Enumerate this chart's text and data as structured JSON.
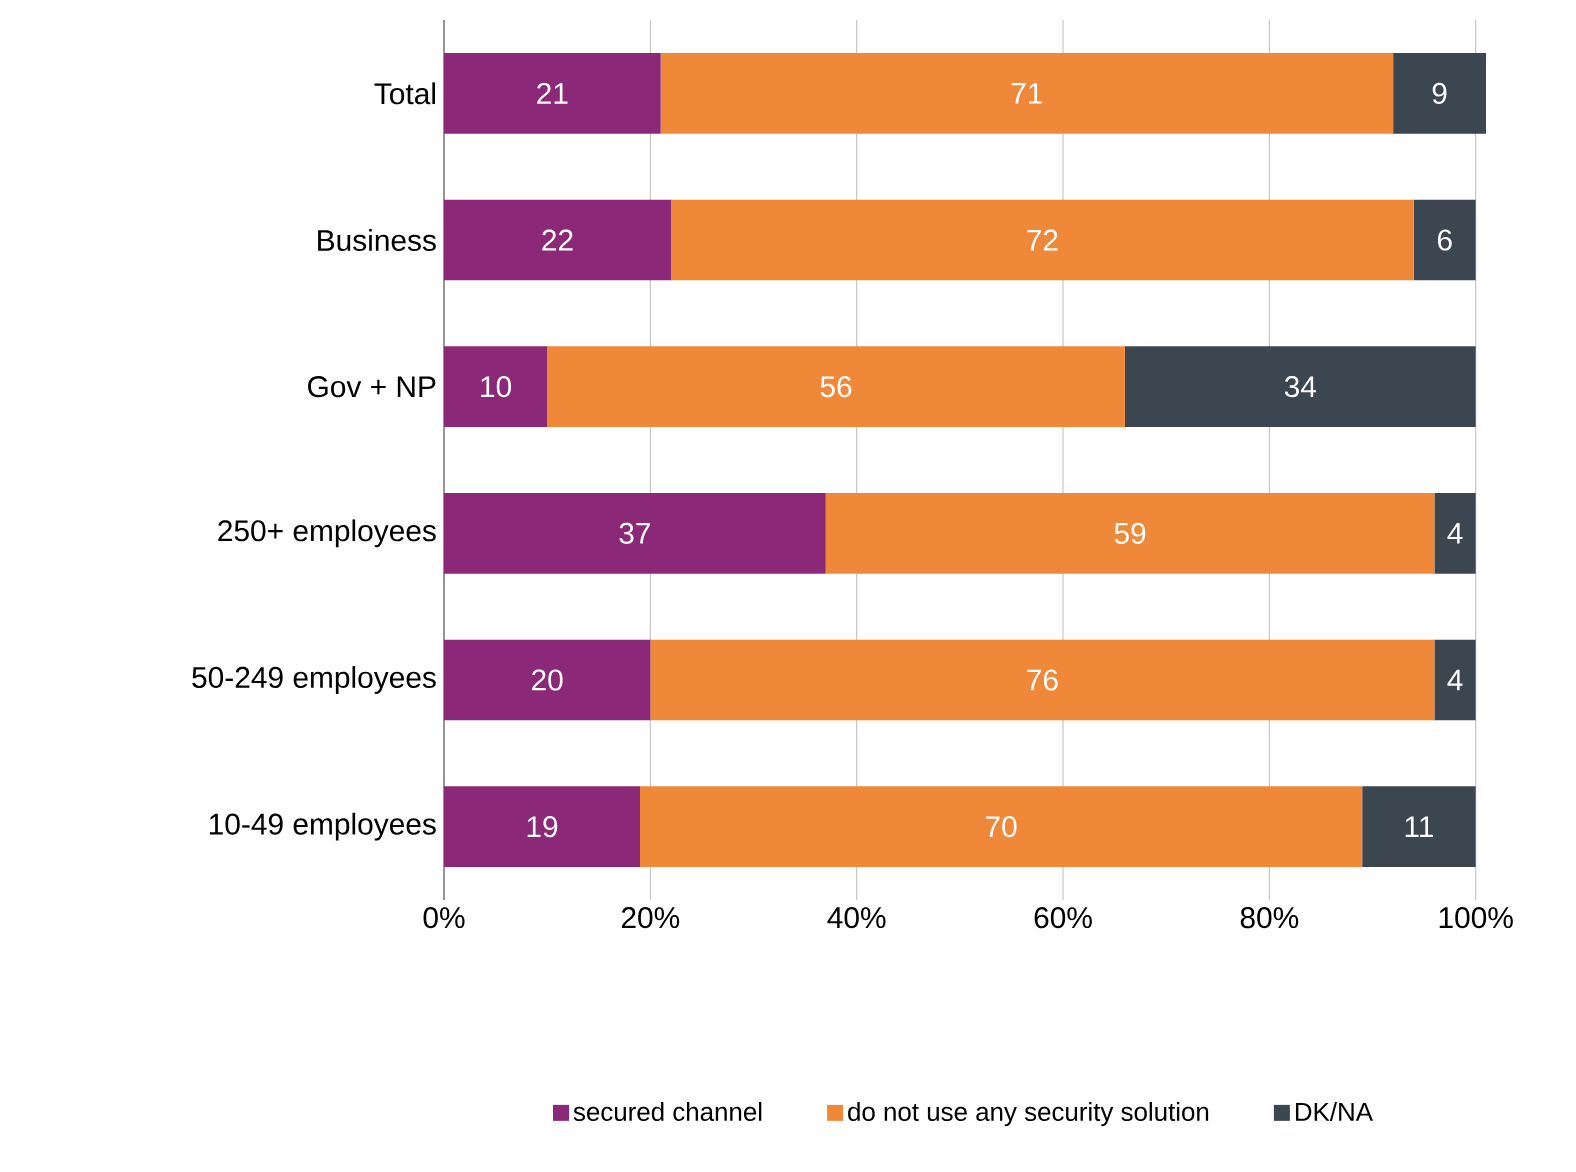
{
  "chart_data": {
    "type": "bar",
    "orientation": "horizontal",
    "stacked": true,
    "data_labels": true,
    "grid": "x",
    "legend": "bottom",
    "categories": [
      "Total",
      "Business",
      "Gov + NP",
      "250+ employees",
      "50-249 employees",
      "10-49 employees"
    ],
    "series": [
      {
        "name": "secured channel",
        "color": "#8b2877",
        "values": [
          21,
          22,
          10,
          37,
          20,
          19
        ]
      },
      {
        "name": "do not use any security solution",
        "color": "#f0883a",
        "values": [
          71,
          72,
          56,
          59,
          76,
          70
        ]
      },
      {
        "name": "DK/NA",
        "color": "#3b4650",
        "values": [
          9,
          6,
          34,
          4,
          4,
          11
        ]
      }
    ],
    "xlim": [
      0,
      101
    ],
    "xticks": [
      {
        "value": 0,
        "label": "0%"
      },
      {
        "value": 20,
        "label": "20%"
      },
      {
        "value": 40,
        "label": "40%"
      },
      {
        "value": 60,
        "label": "60%"
      },
      {
        "value": 80,
        "label": "80%"
      },
      {
        "value": 100,
        "label": "100%"
      }
    ]
  }
}
